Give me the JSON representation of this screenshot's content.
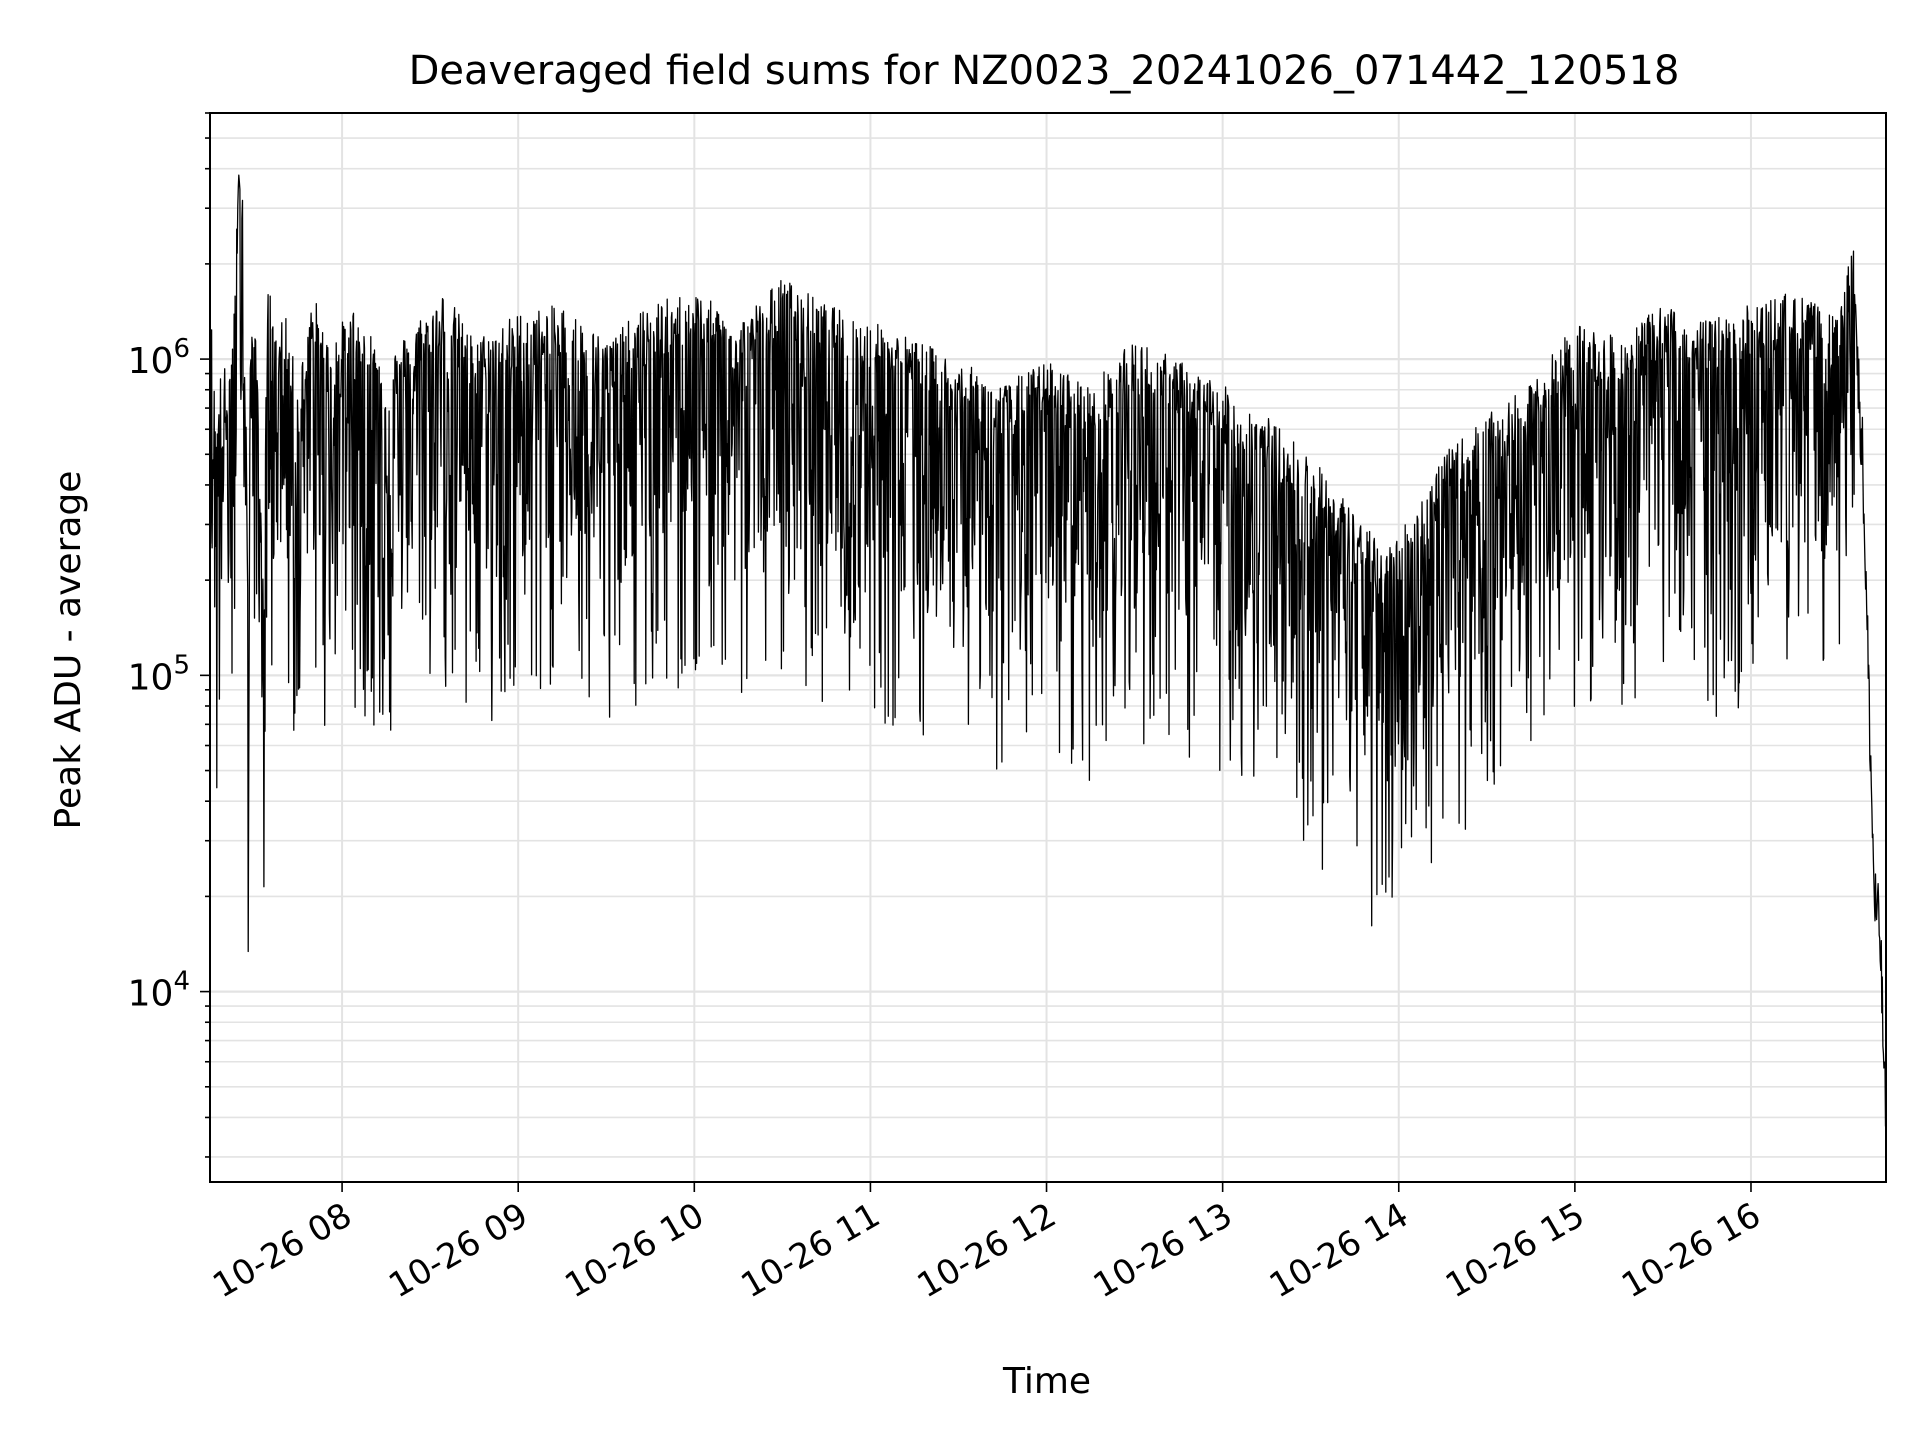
{
  "chart_data": {
    "type": "line",
    "title": "Deaveraged field sums for NZ0023_20241026_071442_120518",
    "xlabel": "Time",
    "ylabel": "Peak ADU - average",
    "yscale": "log",
    "ylim": [
      2500,
      6000000
    ],
    "xlim": [
      "2024-10-26 07:15",
      "2024-10-26 16:46"
    ],
    "grid": true,
    "line_color": "#000000",
    "x_tick_labels": [
      "10-26 08",
      "10-26 09",
      "10-26 10",
      "10-26 11",
      "10-26 12",
      "10-26 13",
      "10-26 14",
      "10-26 15",
      "10-26 16"
    ],
    "x_tick_times": [
      "2024-10-26 08:00",
      "2024-10-26 09:00",
      "2024-10-26 10:00",
      "2024-10-26 11:00",
      "2024-10-26 12:00",
      "2024-10-26 13:00",
      "2024-10-26 14:00",
      "2024-10-26 15:00",
      "2024-10-26 16:00"
    ],
    "y_tick_labels": [
      {
        "base": "10",
        "exp": "4",
        "value": 10000
      },
      {
        "base": "10",
        "exp": "5",
        "value": 100000
      },
      {
        "base": "10",
        "exp": "6",
        "value": 1000000
      }
    ],
    "series": [
      {
        "x": [
          "2024-10-26 07:15",
          "2024-10-26 07:17",
          "2024-10-26 07:19",
          "2024-10-26 07:21",
          "2024-10-26 07:23",
          "2024-10-26 07:25",
          "2024-10-26 07:26",
          "2024-10-26 07:27",
          "2024-10-26 07:28",
          "2024-10-26 07:29",
          "2024-10-26 07:31",
          "2024-10-26 07:33",
          "2024-10-26 07:35",
          "2024-10-26 07:37",
          "2024-10-26 07:40",
          "2024-10-26 07:45",
          "2024-10-26 07:50",
          "2024-10-26 07:55",
          "2024-10-26 08:05",
          "2024-10-26 08:15",
          "2024-10-26 08:25",
          "2024-10-26 08:35",
          "2024-10-26 08:45",
          "2024-10-26 09:00",
          "2024-10-26 09:15",
          "2024-10-26 09:30",
          "2024-10-26 09:45",
          "2024-10-26 10:00",
          "2024-10-26 10:15",
          "2024-10-26 10:30",
          "2024-10-26 10:45",
          "2024-10-26 11:00",
          "2024-10-26 11:15",
          "2024-10-26 11:30",
          "2024-10-26 11:45",
          "2024-10-26 12:00",
          "2024-10-26 12:15",
          "2024-10-26 12:30",
          "2024-10-26 12:45",
          "2024-10-26 13:00",
          "2024-10-26 13:15",
          "2024-10-26 13:30",
          "2024-10-26 13:45",
          "2024-10-26 13:55",
          "2024-10-26 14:05",
          "2024-10-26 14:15",
          "2024-10-26 14:30",
          "2024-10-26 14:45",
          "2024-10-26 15:00",
          "2024-10-26 15:15",
          "2024-10-26 15:30",
          "2024-10-26 15:45",
          "2024-10-26 16:00",
          "2024-10-26 16:15",
          "2024-10-26 16:30",
          "2024-10-26 16:35",
          "2024-10-26 16:38",
          "2024-10-26 16:40",
          "2024-10-26 16:42",
          "2024-10-26 16:44",
          "2024-10-26 16:46"
        ],
        "y": [
          1000000,
          400000,
          600000,
          550000,
          800000,
          2800000,
          2500000,
          800000,
          100000,
          1100000,
          600000,
          150000,
          1200000,
          700000,
          900000,
          500000,
          1000000,
          700000,
          900000,
          600000,
          800000,
          1000000,
          700000,
          850000,
          900000,
          700000,
          900000,
          1000000,
          800000,
          1100000,
          900000,
          800000,
          700000,
          600000,
          500000,
          600000,
          500000,
          700000,
          600000,
          500000,
          400000,
          300000,
          200000,
          150000,
          200000,
          300000,
          400000,
          500000,
          800000,
          700000,
          900000,
          800000,
          900000,
          1000000,
          800000,
          1500000,
          500000,
          100000,
          20000,
          15000,
          3500
        ]
      }
    ]
  }
}
